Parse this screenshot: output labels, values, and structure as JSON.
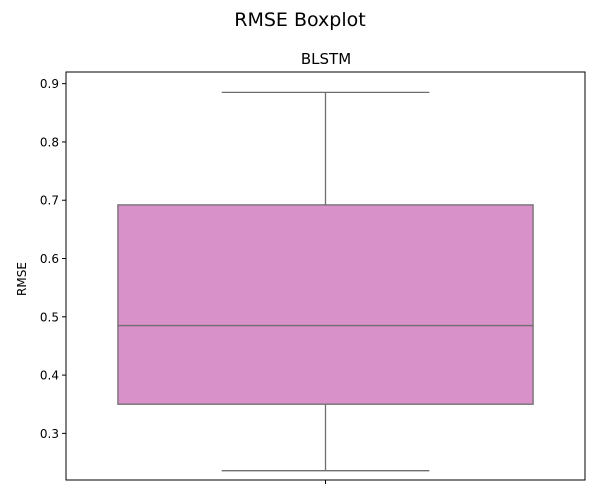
{
  "chart_data": {
    "type": "boxplot",
    "suptitle": "RMSE Boxplot",
    "title": "BLSTM",
    "ylabel": "RMSE",
    "xlabel": "",
    "ylim": [
      0.22,
      0.92
    ],
    "yticks": [
      0.3,
      0.4,
      0.5,
      0.6,
      0.7,
      0.8,
      0.9
    ],
    "ytick_labels": [
      "0.3",
      "0.4",
      "0.5",
      "0.6",
      "0.7",
      "0.8",
      "0.9"
    ],
    "grid": false,
    "box": {
      "whisker_low": 0.236,
      "q1": 0.35,
      "median": 0.485,
      "q3": 0.692,
      "whisker_high": 0.885,
      "fill_color": "#d891c9",
      "line_color": "#6e6e6e"
    }
  }
}
